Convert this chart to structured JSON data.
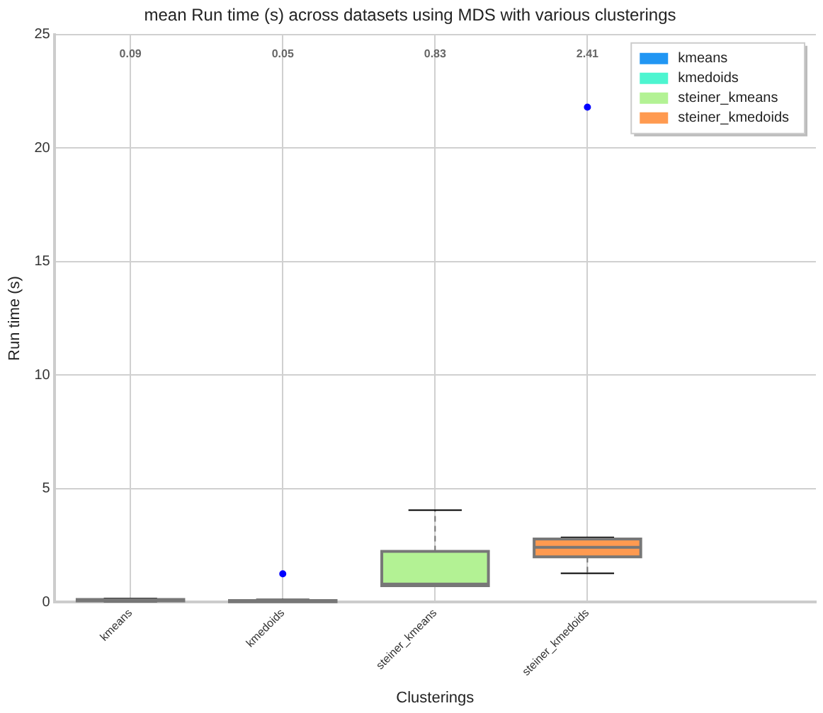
{
  "chart_data": {
    "type": "box",
    "title": "mean Run time (s) across datasets using MDS with various clusterings",
    "xlabel": "Clusterings",
    "ylabel": "Run time (s)",
    "categories": [
      "kmeans",
      "kmedoids",
      "steiner_kmeans",
      "steiner_kmedoids"
    ],
    "series": [
      {
        "name": "kmeans",
        "color": "#2196f3",
        "boxes": [
          {
            "low": 0.03,
            "q1": 0.06,
            "median": 0.09,
            "q3": 0.12,
            "high": 0.17
          },
          null,
          null,
          null
        ]
      },
      {
        "name": "kmedoids",
        "color": "#4df5d0",
        "boxes": [
          null,
          {
            "low": 0.01,
            "q1": 0.02,
            "median": 0.04,
            "q3": 0.07,
            "high": 0.12,
            "outliers": [
              1.25
            ]
          },
          null,
          null
        ]
      },
      {
        "name": "steiner_kmeans",
        "color": "#b3f294",
        "boxes": [
          null,
          null,
          {
            "low": 0.73,
            "q1": 0.73,
            "median": 0.8,
            "q3": 2.24,
            "high": 4.05
          },
          null
        ]
      },
      {
        "name": "steiner_kmedoids",
        "color": "#ff9a50",
        "boxes": [
          null,
          null,
          null,
          {
            "low": 1.27,
            "q1": 2.0,
            "median": 2.42,
            "q3": 2.78,
            "high": 2.85,
            "outliers": [
              21.8
            ]
          }
        ]
      }
    ],
    "annotations": [
      "0.09",
      "0.05",
      "0.83",
      "2.41"
    ],
    "ylim": [
      0,
      25
    ],
    "yticks": [
      0,
      5,
      10,
      15,
      20,
      25
    ],
    "grid": true,
    "legend": "top right"
  }
}
